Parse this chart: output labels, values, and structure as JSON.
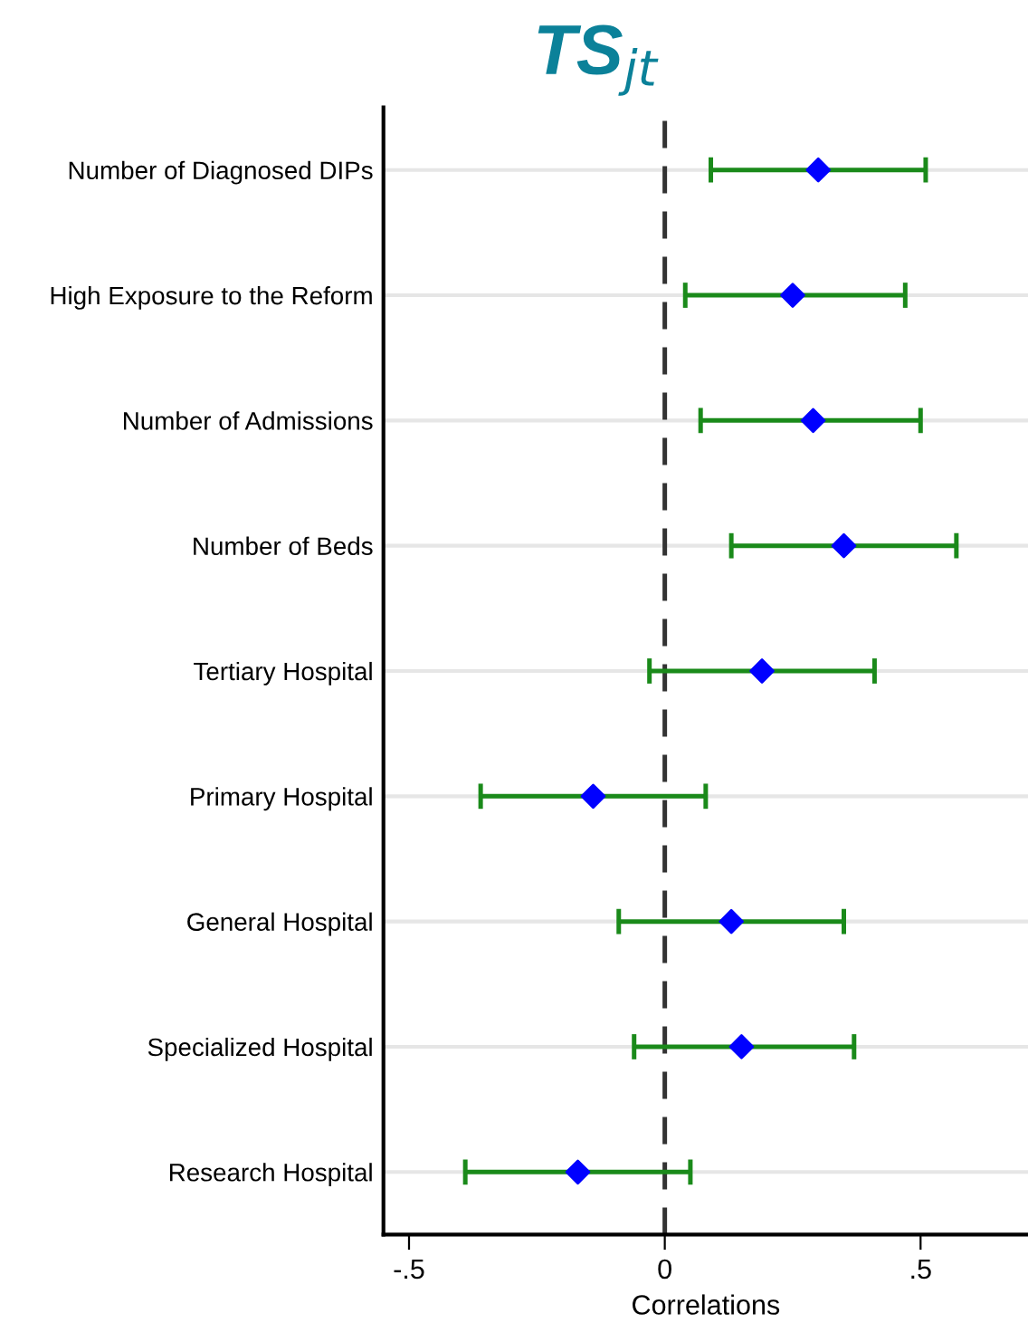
{
  "chart_data": {
    "type": "scatter",
    "orientation": "horizontal",
    "title": "TS$_{jt}$",
    "xlabel": "Correlations",
    "categories": [
      "Number of Diagnosed DIPs",
      "High Exposure to the Reform",
      "Number of Admissions",
      "Number of Beds",
      "Tertiary Hospital",
      "Primary Hospital",
      "General Hospital",
      "Specialized Hospital",
      "Research Hospital"
    ],
    "series": [
      {
        "color": "#0000ff",
        "values": [
          0.3,
          0.25,
          0.29,
          0.35,
          0.19,
          -0.14,
          0.13,
          0.15,
          -0.17
        ],
        "errors": [
          [
            0.09,
            0.51
          ],
          [
            0.04,
            0.47
          ],
          [
            0.07,
            0.5
          ],
          [
            0.13,
            0.57
          ],
          [
            -0.03,
            0.41
          ],
          [
            -0.36,
            0.08
          ],
          [
            -0.09,
            0.35
          ],
          [
            -0.06,
            0.37
          ],
          [
            -0.39,
            0.05
          ]
        ]
      }
    ],
    "marker": "diamond",
    "xlim": [
      -0.55,
      0.71
    ],
    "xticks": [
      {
        "value": -0.5,
        "label": "-.5"
      },
      0,
      {
        "value": 0.5,
        "label": ".5"
      }
    ],
    "ref_lines": [
      {
        "axis": "x",
        "value": 0,
        "color": "#333333",
        "line_style": "dashed"
      }
    ],
    "grid": "y",
    "legend": false
  }
}
